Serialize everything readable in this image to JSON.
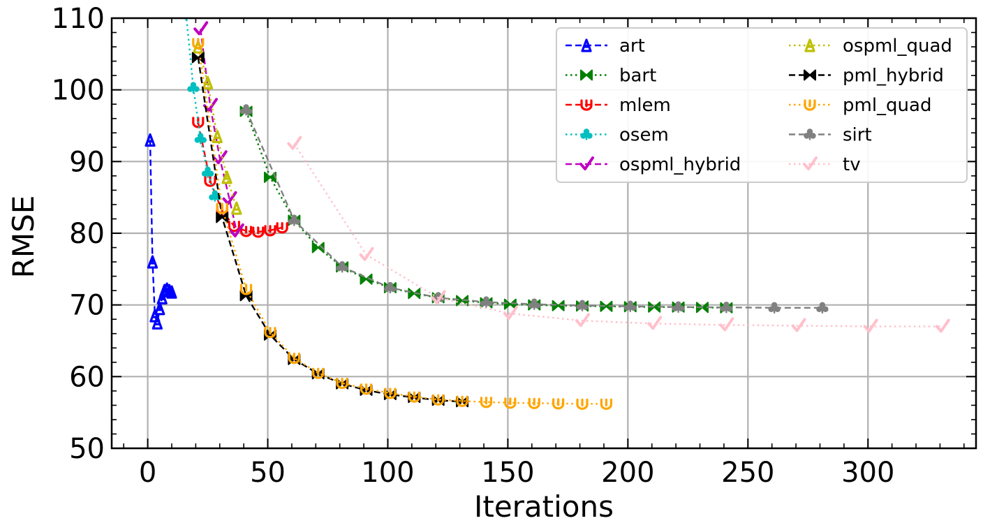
{
  "chart_data": {
    "type": "line",
    "title": "",
    "xlabel": "Iterations",
    "ylabel": "RMSE",
    "xlim": [
      -15,
      345
    ],
    "ylim": [
      50,
      110
    ],
    "xticks": [
      0,
      50,
      100,
      150,
      200,
      250,
      300
    ],
    "yticks": [
      50,
      60,
      70,
      80,
      90,
      100,
      110
    ],
    "grid": true,
    "legend_position": "top-right",
    "series": [
      {
        "name": "art",
        "color": "#0000ff",
        "marker": "tri",
        "linestyle": "dashed",
        "x": [
          1,
          2,
          3,
          4,
          5,
          6,
          7,
          8,
          9,
          10
        ],
        "y": [
          93,
          76,
          68.5,
          67.5,
          69.5,
          71,
          72,
          72.2,
          72,
          71.8
        ]
      },
      {
        "name": "bart",
        "color": "#008000",
        "marker": "bowtie",
        "linestyle": "dotted",
        "x": [
          41,
          51,
          61,
          71,
          81,
          91,
          101,
          111,
          121,
          131,
          141,
          151,
          161,
          171,
          181,
          191,
          201,
          211,
          221,
          231,
          241
        ],
        "y": [
          97,
          87.8,
          81.8,
          78,
          75.3,
          73.6,
          72.4,
          71.6,
          71,
          70.6,
          70.3,
          70.1,
          70,
          69.9,
          69.85,
          69.8,
          69.75,
          69.7,
          69.7,
          69.65,
          69.6
        ]
      },
      {
        "name": "mlem",
        "color": "#ff0000",
        "marker": "cup",
        "linestyle": "dashed",
        "x": [
          21,
          26,
          31,
          36,
          41,
          46,
          51,
          56
        ],
        "y": [
          95.5,
          87.3,
          83.1,
          81,
          80.3,
          80.2,
          80.4,
          80.8
        ]
      },
      {
        "name": "osem",
        "color": "#00bfbf",
        "marker": "club",
        "linestyle": "dotted",
        "x": [
          16,
          19,
          22,
          25,
          28
        ],
        "y": [
          110.5,
          100.3,
          93.2,
          88.5,
          85.2
        ]
      },
      {
        "name": "ospml_hybrid",
        "color": "#bf00bf",
        "marker": "check",
        "linestyle": "dashed",
        "x": [
          22,
          26,
          30,
          34,
          37
        ],
        "y": [
          108.5,
          97.8,
          90.5,
          84.8,
          80.3
        ]
      },
      {
        "name": "ospml_quad",
        "color": "#bfbf00",
        "marker": "tri",
        "linestyle": "dotted",
        "x": [
          21,
          25,
          29,
          33,
          37
        ],
        "y": [
          106,
          101,
          93.5,
          87.8,
          83.5
        ]
      },
      {
        "name": "pml_hybrid",
        "color": "#000000",
        "marker": "bowtie",
        "linestyle": "dashed",
        "x": [
          21,
          31,
          41,
          51,
          61,
          71,
          81,
          91,
          101,
          111,
          121,
          131
        ],
        "y": [
          104.5,
          82.2,
          71.3,
          65.8,
          62.4,
          60.4,
          59,
          58.1,
          57.5,
          57.1,
          56.7,
          56.5
        ]
      },
      {
        "name": "pml_quad",
        "color": "#ffa500",
        "marker": "cup",
        "linestyle": "dotted",
        "x": [
          21,
          31,
          41,
          51,
          61,
          71,
          81,
          91,
          101,
          111,
          121,
          131,
          141,
          151,
          161,
          171,
          181,
          191
        ],
        "y": [
          106.5,
          83.5,
          72.2,
          66.2,
          62.6,
          60.5,
          59.1,
          58.3,
          57.7,
          57.2,
          56.8,
          56.6,
          56.45,
          56.35,
          56.3,
          56.25,
          56.2,
          56.2
        ]
      },
      {
        "name": "sirt",
        "color": "#808080",
        "marker": "club",
        "linestyle": "dashed",
        "x": [
          41,
          61,
          81,
          101,
          121,
          141,
          161,
          181,
          201,
          221,
          241,
          261,
          281
        ],
        "y": [
          97.2,
          81.8,
          75.3,
          72.4,
          71,
          70.4,
          70.1,
          69.9,
          69.8,
          69.7,
          69.65,
          69.6,
          69.6
        ]
      },
      {
        "name": "tv",
        "color": "#ffc0cb",
        "marker": "check",
        "linestyle": "dotted",
        "x": [
          61,
          91,
          121,
          151,
          181,
          211,
          241,
          271,
          301,
          331
        ],
        "y": [
          92.5,
          77,
          71,
          68.8,
          67.8,
          67.4,
          67.2,
          67.1,
          67,
          67
        ]
      }
    ]
  }
}
